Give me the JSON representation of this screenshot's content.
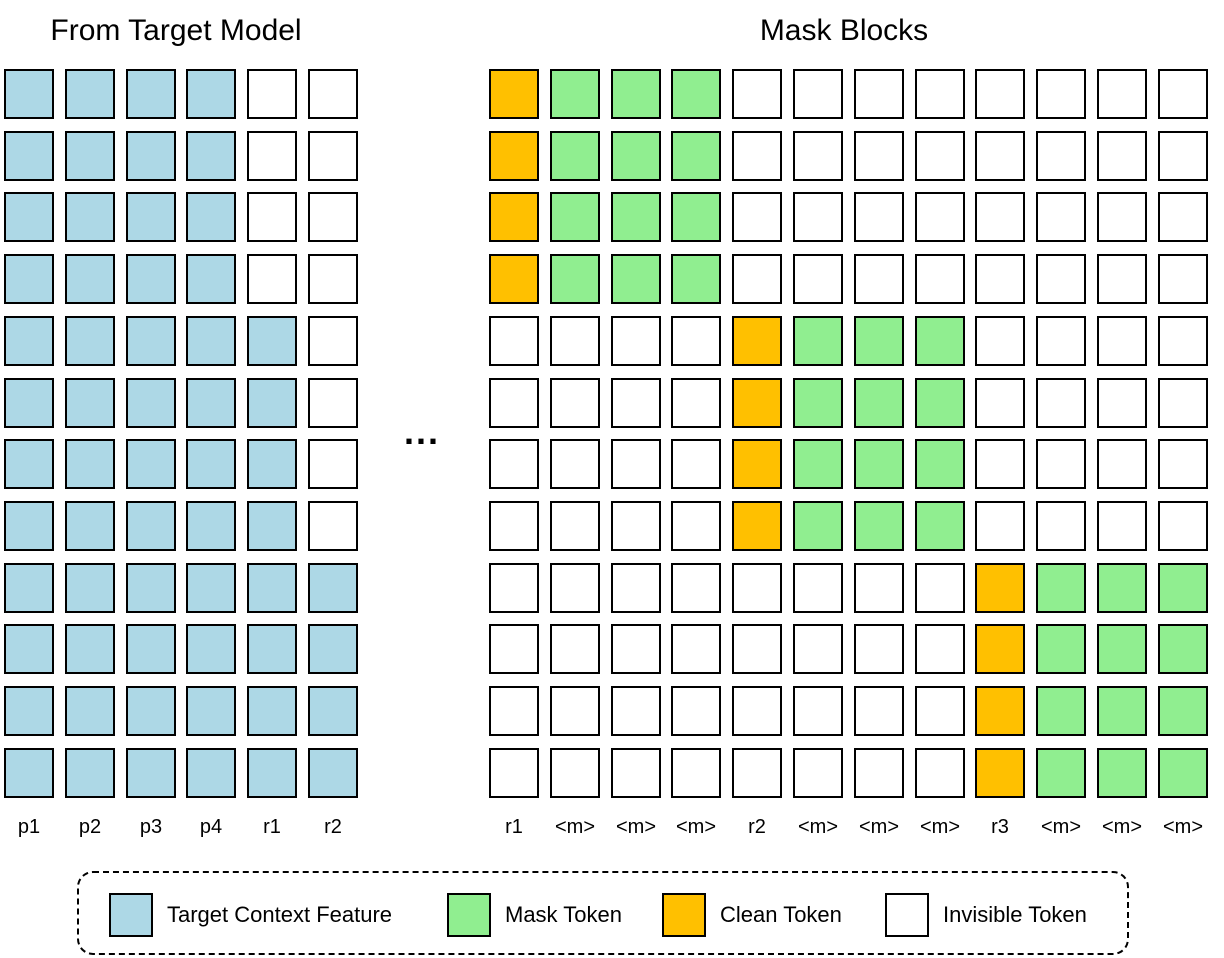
{
  "left_panel": {
    "title": "From Target Model",
    "rows": [
      [
        "ctx",
        "ctx",
        "ctx",
        "ctx",
        "inv",
        "inv"
      ],
      [
        "ctx",
        "ctx",
        "ctx",
        "ctx",
        "inv",
        "inv"
      ],
      [
        "ctx",
        "ctx",
        "ctx",
        "ctx",
        "inv",
        "inv"
      ],
      [
        "ctx",
        "ctx",
        "ctx",
        "ctx",
        "inv",
        "inv"
      ],
      [
        "ctx",
        "ctx",
        "ctx",
        "ctx",
        "ctx",
        "inv"
      ],
      [
        "ctx",
        "ctx",
        "ctx",
        "ctx",
        "ctx",
        "inv"
      ],
      [
        "ctx",
        "ctx",
        "ctx",
        "ctx",
        "ctx",
        "inv"
      ],
      [
        "ctx",
        "ctx",
        "ctx",
        "ctx",
        "ctx",
        "inv"
      ],
      [
        "ctx",
        "ctx",
        "ctx",
        "ctx",
        "ctx",
        "ctx"
      ],
      [
        "ctx",
        "ctx",
        "ctx",
        "ctx",
        "ctx",
        "ctx"
      ],
      [
        "ctx",
        "ctx",
        "ctx",
        "ctx",
        "ctx",
        "ctx"
      ],
      [
        "ctx",
        "ctx",
        "ctx",
        "ctx",
        "ctx",
        "ctx"
      ]
    ],
    "column_labels": [
      "p1",
      "p2",
      "p3",
      "p4",
      "r1",
      "r2"
    ]
  },
  "ellipsis": "...",
  "right_panel": {
    "title": "Mask Blocks",
    "rows": [
      [
        "clean",
        "mask",
        "mask",
        "mask",
        "inv",
        "inv",
        "inv",
        "inv",
        "inv",
        "inv",
        "inv",
        "inv"
      ],
      [
        "clean",
        "mask",
        "mask",
        "mask",
        "inv",
        "inv",
        "inv",
        "inv",
        "inv",
        "inv",
        "inv",
        "inv"
      ],
      [
        "clean",
        "mask",
        "mask",
        "mask",
        "inv",
        "inv",
        "inv",
        "inv",
        "inv",
        "inv",
        "inv",
        "inv"
      ],
      [
        "clean",
        "mask",
        "mask",
        "mask",
        "inv",
        "inv",
        "inv",
        "inv",
        "inv",
        "inv",
        "inv",
        "inv"
      ],
      [
        "inv",
        "inv",
        "inv",
        "inv",
        "clean",
        "mask",
        "mask",
        "mask",
        "inv",
        "inv",
        "inv",
        "inv"
      ],
      [
        "inv",
        "inv",
        "inv",
        "inv",
        "clean",
        "mask",
        "mask",
        "mask",
        "inv",
        "inv",
        "inv",
        "inv"
      ],
      [
        "inv",
        "inv",
        "inv",
        "inv",
        "clean",
        "mask",
        "mask",
        "mask",
        "inv",
        "inv",
        "inv",
        "inv"
      ],
      [
        "inv",
        "inv",
        "inv",
        "inv",
        "clean",
        "mask",
        "mask",
        "mask",
        "inv",
        "inv",
        "inv",
        "inv"
      ],
      [
        "inv",
        "inv",
        "inv",
        "inv",
        "inv",
        "inv",
        "inv",
        "inv",
        "clean",
        "mask",
        "mask",
        "mask"
      ],
      [
        "inv",
        "inv",
        "inv",
        "inv",
        "inv",
        "inv",
        "inv",
        "inv",
        "clean",
        "mask",
        "mask",
        "mask"
      ],
      [
        "inv",
        "inv",
        "inv",
        "inv",
        "inv",
        "inv",
        "inv",
        "inv",
        "clean",
        "mask",
        "mask",
        "mask"
      ],
      [
        "inv",
        "inv",
        "inv",
        "inv",
        "inv",
        "inv",
        "inv",
        "inv",
        "clean",
        "mask",
        "mask",
        "mask"
      ]
    ],
    "column_labels": [
      "r1",
      "<m>",
      "<m>",
      "<m>",
      "r2",
      "<m>",
      "<m>",
      "<m>",
      "r3",
      "<m>",
      "<m>",
      "<m>"
    ]
  },
  "legend": {
    "items": [
      {
        "key": "ctx",
        "label": "Target Context Feature"
      },
      {
        "key": "mask",
        "label": "Mask Token"
      },
      {
        "key": "clean",
        "label": "Clean Token"
      },
      {
        "key": "inv",
        "label": "Invisible Token"
      }
    ]
  },
  "colors": {
    "ctx": "#add8e6",
    "mask": "#90ee90",
    "clean": "#ffc000",
    "inv": "#ffffff"
  }
}
